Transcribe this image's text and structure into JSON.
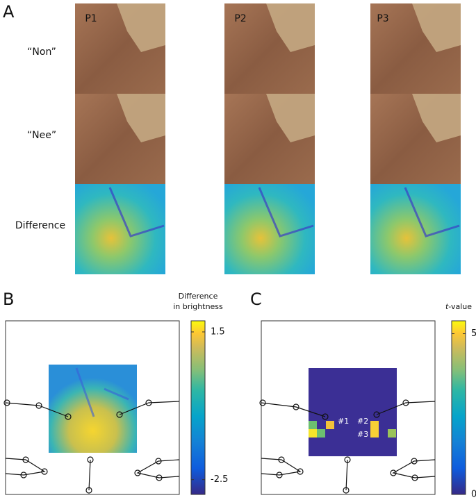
{
  "panels": {
    "A": {
      "label": "A",
      "columns": [
        "P1",
        "P2",
        "P3"
      ],
      "rows": [
        "“Non”",
        "“Nee”",
        "Difference"
      ]
    },
    "B": {
      "label": "B",
      "colorbar": {
        "title": [
          "Difference",
          "in brightness"
        ],
        "lim": [
          -2.9,
          1.8
        ],
        "ticks": [
          1.5,
          -2.5
        ]
      }
    },
    "C": {
      "label": "C",
      "colorbar": {
        "title": {
          "italic": "t",
          "rest": "-value"
        },
        "lim": [
          0,
          5.4
        ],
        "ticks": [
          5,
          0
        ]
      },
      "annotations": [
        "#1",
        "#2",
        "#3"
      ]
    }
  }
}
